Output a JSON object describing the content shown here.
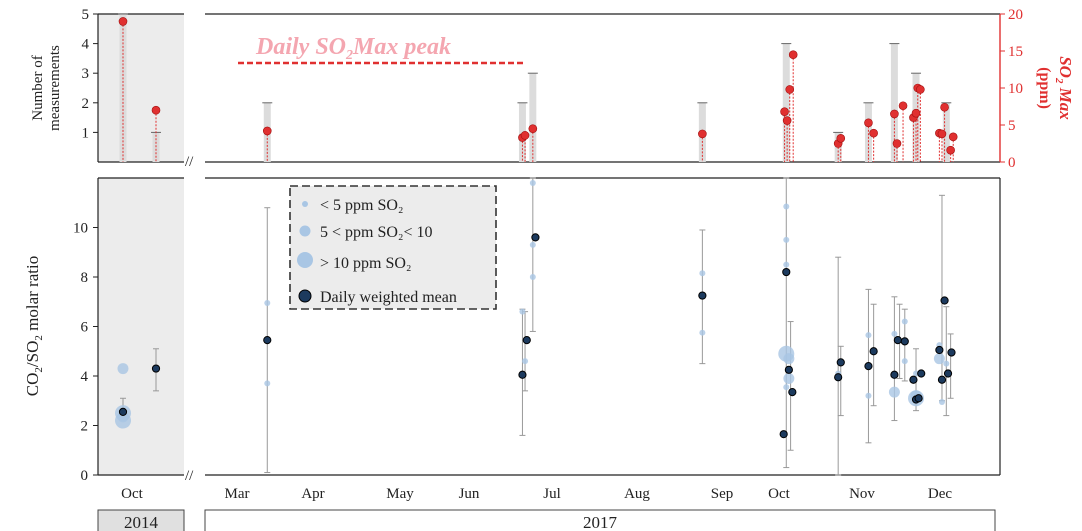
{
  "chart_data": {
    "type": "scatter",
    "years": [
      "2014",
      "2017"
    ],
    "top_panel": {
      "ylabel": "Number of measurements",
      "y_yticks": [
        "1",
        "2",
        "3",
        "4",
        "5"
      ],
      "y2label_main": "SO",
      "y2label_sub": "2",
      "y2label_tail": " Max",
      "y2label_unit": "(ppm)",
      "y2ticks": [
        "0",
        "5",
        "10",
        "15",
        "20"
      ],
      "y2lim": [
        0,
        20
      ],
      "ylim": [
        0,
        5
      ],
      "annotation": "Daily SO₂Max peak",
      "bars": [
        {
          "x": 0.5,
          "value": 5
        },
        {
          "x": 1.0,
          "value": 1
        },
        {
          "x": 2.35,
          "value": 2
        },
        {
          "x": 5.3,
          "value": 2
        },
        {
          "x": 5.42,
          "value": 3
        },
        {
          "x": 7.38,
          "value": 2
        },
        {
          "x": 8.35,
          "value": 4
        },
        {
          "x": 8.95,
          "value": 1
        },
        {
          "x": 9.3,
          "value": 2
        },
        {
          "x": 9.6,
          "value": 4
        },
        {
          "x": 9.85,
          "value": 3
        },
        {
          "x": 10.2,
          "value": 2
        }
      ],
      "so2_max_points": [
        {
          "x": 0.5,
          "y": 19.0
        },
        {
          "x": 1.0,
          "y": 7.0
        },
        {
          "x": 2.35,
          "y": 4.2
        },
        {
          "x": 5.3,
          "y": 3.3
        },
        {
          "x": 5.33,
          "y": 3.6
        },
        {
          "x": 5.42,
          "y": 4.5
        },
        {
          "x": 7.38,
          "y": 3.8
        },
        {
          "x": 8.33,
          "y": 6.8
        },
        {
          "x": 8.36,
          "y": 5.6
        },
        {
          "x": 8.39,
          "y": 9.8
        },
        {
          "x": 8.43,
          "y": 14.5
        },
        {
          "x": 8.95,
          "y": 2.5
        },
        {
          "x": 8.98,
          "y": 3.2
        },
        {
          "x": 9.3,
          "y": 5.3
        },
        {
          "x": 9.36,
          "y": 3.9
        },
        {
          "x": 9.6,
          "y": 6.5
        },
        {
          "x": 9.63,
          "y": 2.5
        },
        {
          "x": 9.7,
          "y": 7.6
        },
        {
          "x": 9.82,
          "y": 6.0
        },
        {
          "x": 9.85,
          "y": 6.6
        },
        {
          "x": 9.87,
          "y": 10.0
        },
        {
          "x": 9.9,
          "y": 9.8
        },
        {
          "x": 10.12,
          "y": 3.9
        },
        {
          "x": 10.15,
          "y": 3.8
        },
        {
          "x": 10.18,
          "y": 7.4
        },
        {
          "x": 10.25,
          "y": 1.6
        },
        {
          "x": 10.28,
          "y": 3.4
        }
      ]
    },
    "bottom_panel": {
      "ylabel_pre": "CO",
      "ylabel_mid": "/SO",
      "ylabel_tail": " molar ratio",
      "yticks": [
        "0",
        "2",
        "4",
        "6",
        "8",
        "10"
      ],
      "ylim": [
        0,
        12
      ],
      "xticks": [
        "Oct",
        "Mar",
        "Apr",
        "May",
        "Jun",
        "Jul",
        "Aug",
        "Sep",
        "Oct",
        "Nov",
        "Dec"
      ],
      "legend": {
        "small": "< 5 ppm SO₂",
        "medium": "5 < ppm SO₂< 10",
        "large": "> 10 ppm SO₂",
        "mean": "Daily weighted mean",
        "placement": "top-left"
      },
      "errorbars": [
        {
          "x": 1.0,
          "lo": 3.4,
          "hi": 5.1
        },
        {
          "x": 0.5,
          "lo": 2.3,
          "hi": 3.1
        },
        {
          "x": 2.35,
          "lo": 0.1,
          "hi": 10.8
        },
        {
          "x": 5.3,
          "lo": 1.6,
          "hi": 6.7
        },
        {
          "x": 5.33,
          "lo": 3.4,
          "hi": 6.6
        },
        {
          "x": 5.42,
          "lo": 5.8,
          "hi": 12.0
        },
        {
          "x": 7.38,
          "lo": 4.5,
          "hi": 9.9
        },
        {
          "x": 8.35,
          "lo": 0.3,
          "hi": 12.0
        },
        {
          "x": 8.4,
          "lo": 1.0,
          "hi": 6.2
        },
        {
          "x": 8.95,
          "lo": 0.0,
          "hi": 8.8
        },
        {
          "x": 8.98,
          "lo": 2.4,
          "hi": 5.2
        },
        {
          "x": 9.3,
          "lo": 1.3,
          "hi": 7.5
        },
        {
          "x": 9.36,
          "lo": 2.8,
          "hi": 6.9
        },
        {
          "x": 9.6,
          "lo": 2.2,
          "hi": 7.2
        },
        {
          "x": 9.66,
          "lo": 3.9,
          "hi": 6.9
        },
        {
          "x": 9.72,
          "lo": 3.8,
          "hi": 6.7
        },
        {
          "x": 9.85,
          "lo": 2.6,
          "hi": 5.1
        },
        {
          "x": 10.15,
          "lo": 3.0,
          "hi": 11.3
        },
        {
          "x": 10.2,
          "lo": 2.4,
          "hi": 6.8
        },
        {
          "x": 10.25,
          "lo": 3.1,
          "hi": 5.7
        }
      ],
      "samples": [
        {
          "x": 0.5,
          "y": 4.3,
          "size": "medium"
        },
        {
          "x": 0.5,
          "y": 2.5,
          "size": "large"
        },
        {
          "x": 0.5,
          "y": 2.2,
          "size": "large"
        },
        {
          "x": 0.5,
          "y": 2.35,
          "size": "medium"
        },
        {
          "x": 2.35,
          "y": 6.95,
          "size": "small"
        },
        {
          "x": 2.35,
          "y": 3.7,
          "size": "small"
        },
        {
          "x": 5.3,
          "y": 6.6,
          "size": "small"
        },
        {
          "x": 5.33,
          "y": 4.6,
          "size": "small"
        },
        {
          "x": 5.42,
          "y": 11.8,
          "size": "small"
        },
        {
          "x": 5.42,
          "y": 9.3,
          "size": "small"
        },
        {
          "x": 5.42,
          "y": 8.0,
          "size": "small"
        },
        {
          "x": 7.38,
          "y": 8.15,
          "size": "small"
        },
        {
          "x": 7.38,
          "y": 5.75,
          "size": "small"
        },
        {
          "x": 8.35,
          "y": 10.85,
          "size": "small"
        },
        {
          "x": 8.35,
          "y": 9.5,
          "size": "small"
        },
        {
          "x": 8.35,
          "y": 8.5,
          "size": "small"
        },
        {
          "x": 8.35,
          "y": 4.9,
          "size": "large"
        },
        {
          "x": 8.38,
          "y": 4.7,
          "size": "medium"
        },
        {
          "x": 8.38,
          "y": 3.9,
          "size": "medium"
        },
        {
          "x": 8.35,
          "y": 3.55,
          "size": "small"
        },
        {
          "x": 8.95,
          "y": 4.1,
          "size": "small"
        },
        {
          "x": 8.95,
          "y": 3.9,
          "size": "small"
        },
        {
          "x": 9.3,
          "y": 5.65,
          "size": "small"
        },
        {
          "x": 9.3,
          "y": 3.2,
          "size": "small"
        },
        {
          "x": 9.6,
          "y": 5.7,
          "size": "small"
        },
        {
          "x": 9.6,
          "y": 3.35,
          "size": "medium"
        },
        {
          "x": 9.6,
          "y": 4.0,
          "size": "small"
        },
        {
          "x": 9.72,
          "y": 6.2,
          "size": "small"
        },
        {
          "x": 9.72,
          "y": 4.6,
          "size": "small"
        },
        {
          "x": 9.85,
          "y": 3.1,
          "size": "large"
        },
        {
          "x": 9.85,
          "y": 3.2,
          "size": "medium"
        },
        {
          "x": 9.85,
          "y": 4.1,
          "size": "small"
        },
        {
          "x": 10.12,
          "y": 5.25,
          "size": "small"
        },
        {
          "x": 10.12,
          "y": 4.7,
          "size": "medium"
        },
        {
          "x": 10.15,
          "y": 2.95,
          "size": "small"
        },
        {
          "x": 10.2,
          "y": 4.5,
          "size": "small"
        }
      ],
      "means": [
        {
          "x": 0.5,
          "y": 2.55
        },
        {
          "x": 1.0,
          "y": 4.3
        },
        {
          "x": 2.35,
          "y": 5.45
        },
        {
          "x": 5.3,
          "y": 4.05
        },
        {
          "x": 5.35,
          "y": 5.45
        },
        {
          "x": 5.45,
          "y": 9.6
        },
        {
          "x": 7.38,
          "y": 7.25
        },
        {
          "x": 8.32,
          "y": 1.65
        },
        {
          "x": 8.35,
          "y": 8.2
        },
        {
          "x": 8.38,
          "y": 4.25
        },
        {
          "x": 8.42,
          "y": 3.35
        },
        {
          "x": 8.95,
          "y": 3.95
        },
        {
          "x": 8.98,
          "y": 4.55
        },
        {
          "x": 9.3,
          "y": 4.4
        },
        {
          "x": 9.36,
          "y": 5.0
        },
        {
          "x": 9.6,
          "y": 4.05
        },
        {
          "x": 9.64,
          "y": 5.45
        },
        {
          "x": 9.72,
          "y": 5.4
        },
        {
          "x": 9.82,
          "y": 3.85
        },
        {
          "x": 9.85,
          "y": 3.05
        },
        {
          "x": 9.88,
          "y": 3.1
        },
        {
          "x": 9.91,
          "y": 4.1
        },
        {
          "x": 10.12,
          "y": 5.05
        },
        {
          "x": 10.15,
          "y": 3.85
        },
        {
          "x": 10.18,
          "y": 7.05
        },
        {
          "x": 10.22,
          "y": 4.1
        },
        {
          "x": 10.26,
          "y": 4.95
        }
      ]
    },
    "colors": {
      "red": "#e03030",
      "pink": "#f4a6b0",
      "mean_fill": "#1c3a5e",
      "sample_fill": "#a9c6e4",
      "shade": "#ececec"
    }
  }
}
